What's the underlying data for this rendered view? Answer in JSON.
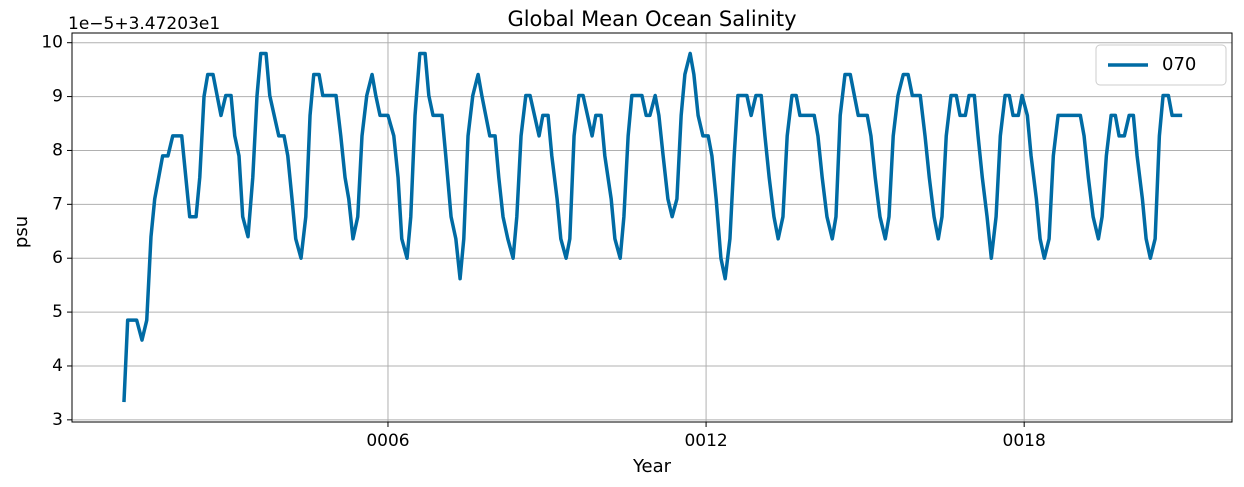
{
  "chart_data": {
    "type": "line",
    "title": "Global Mean Ocean Salinity",
    "x_label": "Year",
    "y_label": "psu",
    "y_offset_text": "1e−5+3.47203e1",
    "legend_position": "upper right",
    "grid": true,
    "xlim": [
      0.04,
      21.92
    ],
    "ylim": [
      2.96,
      10.18
    ],
    "xticks": [
      {
        "value": 6,
        "label": "0006"
      },
      {
        "value": 12,
        "label": "0012"
      },
      {
        "value": 18,
        "label": "0018"
      }
    ],
    "yticks": [
      3,
      4,
      5,
      6,
      7,
      8,
      9,
      10
    ],
    "x": [
      1.02,
      1.09,
      1.26,
      1.36,
      1.45,
      1.53,
      1.6,
      1.75,
      1.85,
      1.94,
      2.11,
      2.26,
      2.38,
      2.45,
      2.53,
      2.6,
      2.7,
      2.85,
      2.94,
      3.04,
      3.11,
      3.19,
      3.26,
      3.36,
      3.45,
      3.53,
      3.6,
      3.7,
      3.77,
      3.94,
      4.04,
      4.11,
      4.19,
      4.26,
      4.36,
      4.45,
      4.53,
      4.6,
      4.7,
      4.77,
      5.02,
      5.11,
      5.19,
      5.26,
      5.34,
      5.43,
      5.51,
      5.6,
      5.7,
      5.77,
      5.85,
      6.0,
      6.11,
      6.19,
      6.26,
      6.36,
      6.43,
      6.51,
      6.6,
      6.7,
      6.77,
      6.85,
      7.02,
      7.09,
      7.19,
      7.28,
      7.36,
      7.43,
      7.51,
      7.6,
      7.7,
      7.77,
      7.92,
      8.02,
      8.09,
      8.17,
      8.26,
      8.36,
      8.43,
      8.51,
      8.6,
      8.68,
      8.85,
      8.92,
      9.02,
      9.09,
      9.19,
      9.26,
      9.36,
      9.43,
      9.51,
      9.6,
      9.68,
      9.85,
      9.92,
      10.02,
      10.09,
      10.21,
      10.28,
      10.38,
      10.45,
      10.53,
      10.6,
      10.79,
      10.87,
      10.94,
      11.04,
      11.11,
      11.19,
      11.28,
      11.36,
      11.45,
      11.53,
      11.6,
      11.7,
      11.77,
      11.85,
      11.94,
      12.04,
      12.11,
      12.19,
      12.28,
      12.36,
      12.45,
      12.53,
      12.6,
      12.77,
      12.85,
      12.94,
      13.04,
      13.11,
      13.19,
      13.28,
      13.36,
      13.45,
      13.53,
      13.62,
      13.7,
      13.77,
      14.04,
      14.11,
      14.19,
      14.28,
      14.38,
      14.45,
      14.53,
      14.62,
      14.72,
      14.87,
      15.04,
      15.11,
      15.19,
      15.28,
      15.38,
      15.45,
      15.53,
      15.62,
      15.72,
      15.81,
      15.89,
      16.04,
      16.13,
      16.21,
      16.3,
      16.38,
      16.45,
      16.53,
      16.62,
      16.72,
      16.79,
      16.89,
      16.96,
      17.06,
      17.13,
      17.21,
      17.3,
      17.38,
      17.47,
      17.55,
      17.64,
      17.72,
      17.79,
      17.89,
      17.96,
      18.06,
      18.13,
      18.23,
      18.3,
      18.38,
      18.47,
      18.55,
      18.64,
      19.06,
      19.13,
      19.21,
      19.3,
      19.4,
      19.47,
      19.55,
      19.64,
      19.72,
      19.79,
      19.89,
      19.98,
      20.06,
      20.13,
      20.23,
      20.3,
      20.38,
      20.47,
      20.55,
      20.62,
      20.72,
      20.79,
      20.98
    ],
    "series": [
      {
        "name": "070",
        "color": "#006ba4",
        "values": [
          3.33,
          4.85,
          4.85,
          4.48,
          4.85,
          6.4,
          7.1,
          7.9,
          7.9,
          8.27,
          8.27,
          6.77,
          6.77,
          7.5,
          9.0,
          9.41,
          9.41,
          8.65,
          9.02,
          9.02,
          8.27,
          7.9,
          6.77,
          6.4,
          7.5,
          9.02,
          9.8,
          9.8,
          9.02,
          8.27,
          8.27,
          7.9,
          7.1,
          6.36,
          6.0,
          6.77,
          8.65,
          9.41,
          9.41,
          9.02,
          9.02,
          8.27,
          7.5,
          7.1,
          6.36,
          6.77,
          8.27,
          9.02,
          9.41,
          9.02,
          8.65,
          8.65,
          8.27,
          7.5,
          6.36,
          6.0,
          6.77,
          8.65,
          9.8,
          9.8,
          9.02,
          8.65,
          8.65,
          7.9,
          6.77,
          6.36,
          5.62,
          6.36,
          8.27,
          9.02,
          9.41,
          9.02,
          8.27,
          8.27,
          7.5,
          6.77,
          6.36,
          6.0,
          6.77,
          8.27,
          9.02,
          9.02,
          8.27,
          8.65,
          8.65,
          7.9,
          7.1,
          6.36,
          6.0,
          6.36,
          8.27,
          9.02,
          9.02,
          8.27,
          8.65,
          8.65,
          7.9,
          7.1,
          6.36,
          6.0,
          6.77,
          8.27,
          9.02,
          9.02,
          8.65,
          8.65,
          9.02,
          8.65,
          7.9,
          7.1,
          6.77,
          7.1,
          8.65,
          9.41,
          9.8,
          9.41,
          8.65,
          8.27,
          8.27,
          7.9,
          7.1,
          6.0,
          5.62,
          6.36,
          7.9,
          9.02,
          9.02,
          8.65,
          9.02,
          9.02,
          8.27,
          7.5,
          6.77,
          6.36,
          6.77,
          8.27,
          9.02,
          9.02,
          8.65,
          8.65,
          8.27,
          7.5,
          6.77,
          6.36,
          6.77,
          8.65,
          9.41,
          9.41,
          8.65,
          8.65,
          8.27,
          7.5,
          6.77,
          6.36,
          6.77,
          8.27,
          9.02,
          9.41,
          9.41,
          9.02,
          9.02,
          8.27,
          7.5,
          6.77,
          6.36,
          6.77,
          8.27,
          9.02,
          9.02,
          8.65,
          8.65,
          9.02,
          9.02,
          8.27,
          7.5,
          6.77,
          6.0,
          6.77,
          8.27,
          9.02,
          9.02,
          8.65,
          8.65,
          9.02,
          8.65,
          7.9,
          7.1,
          6.36,
          6.0,
          6.36,
          7.9,
          8.65,
          8.65,
          8.27,
          7.5,
          6.77,
          6.36,
          6.77,
          7.9,
          8.65,
          8.65,
          8.27,
          8.27,
          8.65,
          8.65,
          7.9,
          7.1,
          6.36,
          6.0,
          6.36,
          8.27,
          9.02,
          9.02,
          8.65,
          8.65
        ]
      }
    ]
  }
}
